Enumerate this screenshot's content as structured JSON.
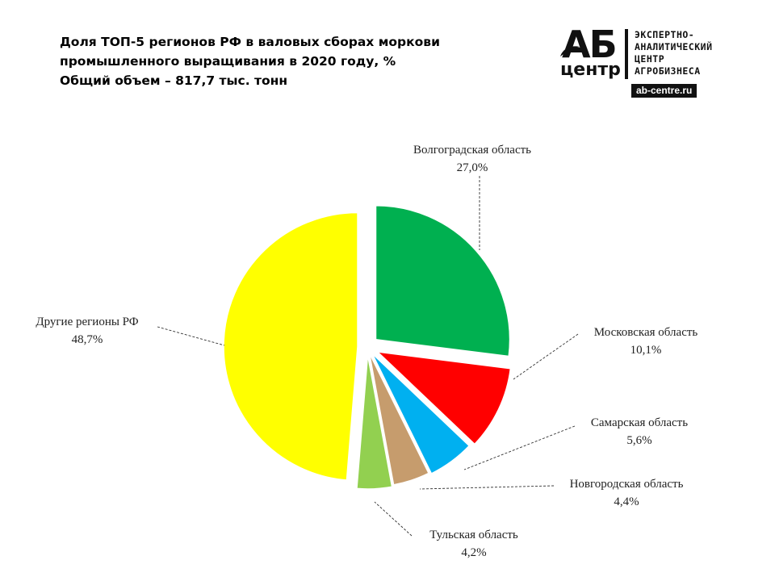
{
  "title": {
    "line1": "Доля ТОП-5 регионов РФ в валовых сборах моркови",
    "line2": "промышленного  выращивания  в 2020 году, %",
    "line3": "Общий объем – 817,7 тыс. тонн"
  },
  "logo": {
    "mark_top": "АБ",
    "mark_bottom": "центр",
    "text_lines": [
      "ЭКСПЕРТНО-",
      "АНАЛИТИЧЕСКИЙ",
      "ЦЕНТР",
      "АГРОБИЗНЕСА"
    ],
    "site": "ab-centre.ru"
  },
  "chart_data": {
    "type": "pie",
    "title": "Доля ТОП-5 регионов РФ в валовых сборах моркови промышленного выращивания в 2020 году, %",
    "unit": "%",
    "slices": [
      {
        "label": "Волгоградская область",
        "value": 27.0,
        "display": "27,0%",
        "color": "#00B050"
      },
      {
        "label": "Московская область",
        "value": 10.1,
        "display": "10,1%",
        "color": "#FF0000"
      },
      {
        "label": "Самарская область",
        "value": 5.6,
        "display": "5,6%",
        "color": "#00B0F0"
      },
      {
        "label": "Новгородская область",
        "value": 4.4,
        "display": "4,4%",
        "color": "#C69C6D"
      },
      {
        "label": "Тульская область",
        "value": 4.2,
        "display": "4,2%",
        "color": "#92D050"
      },
      {
        "label": "Другие регионы РФ",
        "value": 48.7,
        "display": "48,7%",
        "color": "#FFFF00"
      }
    ],
    "legend": "none",
    "labels": "outside with leader lines"
  }
}
